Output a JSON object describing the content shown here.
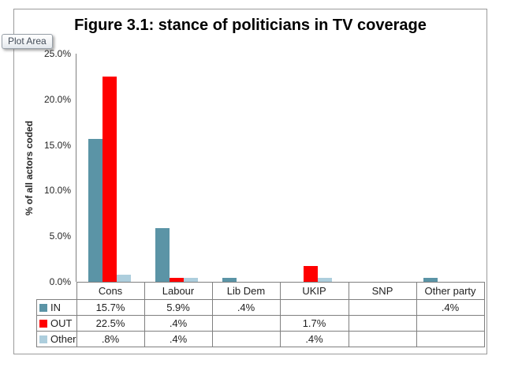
{
  "tooltip": {
    "label": "Plot Area"
  },
  "chart_data": {
    "type": "bar",
    "title": "Figure 3.1: stance of politicians in TV coverage",
    "xlabel": "",
    "ylabel": "% of all actors coded",
    "categories": [
      "Cons",
      "Labour",
      "Lib Dem",
      "UKIP",
      "SNP",
      "Other party"
    ],
    "series": [
      {
        "name": "IN",
        "color": "#5B94A6",
        "values": [
          15.7,
          5.9,
          0.4,
          null,
          null,
          0.4
        ],
        "cell_labels": [
          "15.7%",
          "5.9%",
          ".4%",
          "",
          "",
          ".4%"
        ]
      },
      {
        "name": "OUT",
        "color": "#FF0000",
        "values": [
          22.5,
          0.4,
          null,
          1.7,
          null,
          null
        ],
        "cell_labels": [
          "22.5%",
          ".4%",
          "",
          "1.7%",
          "",
          ""
        ]
      },
      {
        "name": "Other",
        "color": "#ADCEDD",
        "values": [
          0.8,
          0.4,
          null,
          0.4,
          null,
          null
        ],
        "cell_labels": [
          ".8%",
          ".4%",
          "",
          ".4%",
          "",
          ""
        ]
      }
    ],
    "y_ticks": [
      "25.0%",
      "20.0%",
      "15.0%",
      "10.0%",
      "5.0%",
      "0.0%"
    ],
    "ylim": [
      0,
      25
    ],
    "grid": false,
    "legend_position": "data-table-row-keys"
  }
}
